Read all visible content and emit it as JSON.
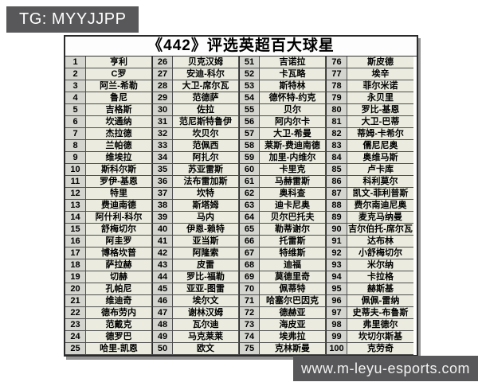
{
  "badge": {
    "text": "TG: MYYJJPP"
  },
  "footer": {
    "url": "www.m-leyu-esports.com"
  },
  "colors": {
    "badge_bg": "#58585a",
    "number_cell_bg": "#d5d5cf",
    "name_cell_bg": "#ebecdf",
    "border": "#4e4e4e"
  },
  "table": {
    "title": "《442》评选英超百大球星",
    "rows_per_column": 25,
    "players": [
      "亨利",
      "C罗",
      "阿兰-希勒",
      "鲁尼",
      "吉格斯",
      "坎通纳",
      "杰拉德",
      "兰帕德",
      "维埃拉",
      "斯科尔斯",
      "罗伊-基恩",
      "特里",
      "费迪南德",
      "阿什利-科尔",
      "舒梅切尔",
      "阿圭罗",
      "博格坎普",
      "萨拉赫",
      "切赫",
      "孔帕尼",
      "维迪奇",
      "德布劳内",
      "范戴克",
      "德罗巴",
      "哈里-凯恩",
      "贝克汉姆",
      "安迪-科尔",
      "大卫-席尔瓦",
      "范德萨",
      "佐拉",
      "范尼斯特鲁伊",
      "坎贝尔",
      "范佩西",
      "阿扎尔",
      "苏亚雷斯",
      "法布雷加斯",
      "坎特",
      "斯塔姆",
      "马内",
      "伊恩-赖特",
      "亚当斯",
      "阿隆索",
      "皮雷",
      "罗比-福勒",
      "亚亚-图雷",
      "埃尔文",
      "谢林汉姆",
      "瓦尔迪",
      "马克莱莱",
      "欧文",
      "吉诺拉",
      "卡瓦略",
      "斯特林",
      "德怀特-约克",
      "贝尔",
      "阿内尔卡",
      "大卫-希曼",
      "莱斯-费迪南德",
      "加里-内维尔",
      "卡里克",
      "马赫雷斯",
      "奥科查",
      "迪卡尼奥",
      "贝尔巴托夫",
      "勒蒂谢尔",
      "托雷斯",
      "特维斯",
      "迪福",
      "莫德里奇",
      "佩蒂特",
      "哈塞尔巴因克",
      "德赫亚",
      "海皮亚",
      "埃弗拉",
      "克林斯曼",
      "斯皮德",
      "埃辛",
      "菲尔米诺",
      "永贝里",
      "罗比-基恩",
      "大卫-巴蒂",
      "蒂姆-卡希尔",
      "儒尼尼奥",
      "奥维马斯",
      "卢卡库",
      "科利莫尔",
      "凯文-菲利普斯",
      "费尔南迪尼奥",
      "麦克马纳曼",
      "吉尔伯托-席尔瓦",
      "达布林",
      "小舒梅切尔",
      "米尔纳",
      "卡拉格",
      "赫斯基",
      "佩佩-雷纳",
      "史蒂夫-布鲁斯",
      "弗里德尔",
      "坎切尔斯基",
      "克劳奇"
    ]
  }
}
